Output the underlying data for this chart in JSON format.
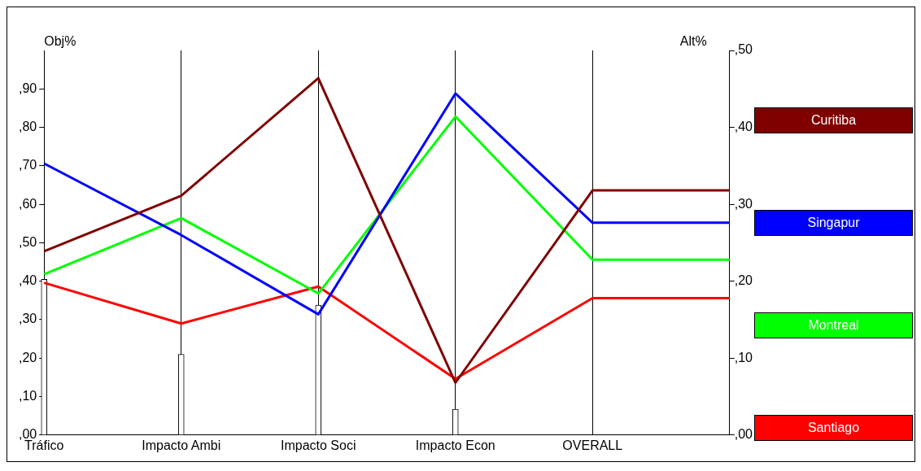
{
  "chart_data": {
    "type": "line",
    "ylabel": "Obj%",
    "y2label": "Alt%",
    "categories": [
      "Tráfico",
      "Impacto Ambi",
      "Impacto Soci",
      "Impacto Econ",
      "OVERALL",
      null
    ],
    "series": [
      {
        "type": "bar",
        "color": "#ffffff",
        "axis": "y",
        "values": [
          40.5,
          21,
          33.8,
          6.7,
          null,
          null
        ]
      },
      {
        "name": "Curitiba",
        "color": "#800000",
        "axis": "y2",
        "values": [
          23.9,
          31.1,
          46.4,
          6.8,
          31.8,
          31.8
        ]
      },
      {
        "name": "Singapur",
        "color": "#0000ff",
        "axis": "y2",
        "values": [
          35.3,
          26,
          15.7,
          44.4,
          27.6,
          27.6
        ]
      },
      {
        "name": "Montreal",
        "color": "#00ff00",
        "axis": "y2",
        "values": [
          20.9,
          28.2,
          18.4,
          41.4,
          22.8,
          22.8
        ]
      },
      {
        "name": "Santiago",
        "color": "#ff0000",
        "axis": "y2",
        "values": [
          19.8,
          14.5,
          19.3,
          7.3,
          17.8,
          17.8
        ]
      }
    ],
    "ylim": [
      0,
      100
    ],
    "yticks": [
      {
        "value": 0,
        "label": ",00"
      },
      {
        "value": 10,
        "label": ",10"
      },
      {
        "value": 20,
        "label": ",20"
      },
      {
        "value": 30,
        "label": ",30"
      },
      {
        "value": 40,
        "label": ",40"
      },
      {
        "value": 50,
        "label": ",50"
      },
      {
        "value": 60,
        "label": ",60"
      },
      {
        "value": 70,
        "label": ",70"
      },
      {
        "value": 80,
        "label": ",80"
      },
      {
        "value": 90,
        "label": ",90"
      }
    ],
    "y2lim": [
      0,
      50
    ],
    "y2ticks": [
      {
        "value": 0,
        "label": ",00"
      },
      {
        "value": 10,
        "label": ",10"
      },
      {
        "value": 20,
        "label": ",20"
      },
      {
        "value": 30,
        "label": ",30"
      },
      {
        "value": 40,
        "label": ",40"
      },
      {
        "value": 50,
        "label": ",50"
      }
    ],
    "grid": "x",
    "legend": "right",
    "marker": "none",
    "line_style": "solid"
  }
}
